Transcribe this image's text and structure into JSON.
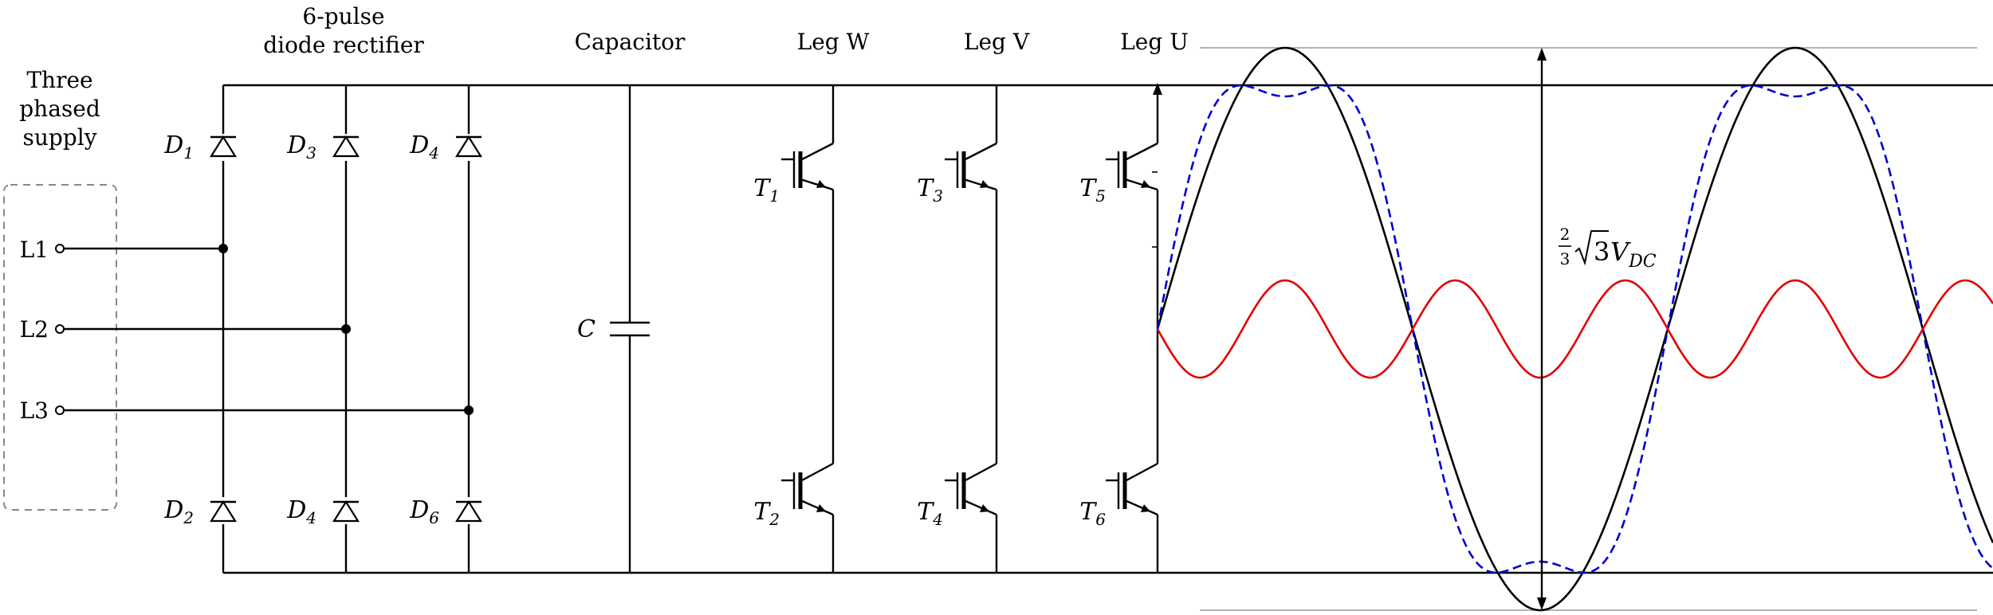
{
  "headers": {
    "supply": [
      "Three",
      "phased",
      "supply"
    ],
    "rectifier": [
      "6-pulse",
      "diode rectifier"
    ],
    "capacitor": "Capacitor",
    "leg_w": "Leg W",
    "leg_v": "Leg V",
    "leg_u": "Leg U"
  },
  "terminals": [
    "L1",
    "L2",
    "L3"
  ],
  "diodes": [
    {
      "id": "D1",
      "sym": "D",
      "sub": "1"
    },
    {
      "id": "D3",
      "sym": "D",
      "sub": "3"
    },
    {
      "id": "D4a",
      "sym": "D",
      "sub": "4"
    },
    {
      "id": "D2",
      "sym": "D",
      "sub": "2"
    },
    {
      "id": "D4b",
      "sym": "D",
      "sub": "4"
    },
    {
      "id": "D6",
      "sym": "D",
      "sub": "6"
    }
  ],
  "transistors": [
    {
      "id": "T1",
      "sym": "T",
      "sub": "1"
    },
    {
      "id": "T3",
      "sym": "T",
      "sub": "3"
    },
    {
      "id": "T5",
      "sym": "T",
      "sub": "5"
    },
    {
      "id": "T2",
      "sym": "T",
      "sub": "2"
    },
    {
      "id": "T4",
      "sym": "T",
      "sub": "4"
    },
    {
      "id": "T6",
      "sym": "T",
      "sub": "6"
    }
  ],
  "capacitor_label": "C",
  "voltage_label": {
    "frac_num": "2",
    "frac_den": "3",
    "radical": "3",
    "var": "V",
    "sub": "DC"
  },
  "colors": {
    "fundamental": "#000000",
    "third_harmonic": "#e00000",
    "modulated": "#0000cc",
    "reference_lines": "#9a9a9a"
  }
}
